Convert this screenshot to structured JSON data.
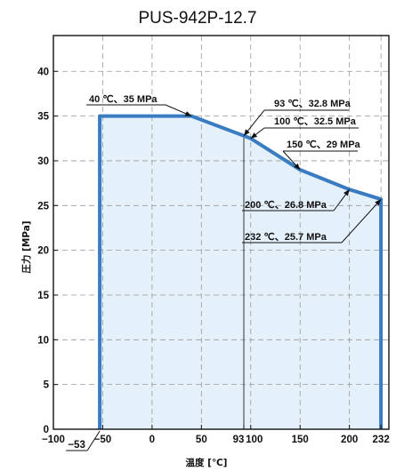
{
  "chart_data": {
    "type": "area",
    "title": "PUS-942P-12.7",
    "xlabel": "温度 [℃]",
    "ylabel": "圧力 [MPa]",
    "xlim": [
      -100,
      240
    ],
    "ylim": [
      0,
      44
    ],
    "x_ticks": [
      -100,
      -50,
      0,
      50,
      93,
      100,
      150,
      200,
      232
    ],
    "x_tick_labels": [
      "−100",
      "−50",
      "0",
      "50",
      "93",
      "100",
      "150",
      "200",
      "232"
    ],
    "extra_x_label": {
      "value": -53,
      "label": "−53"
    },
    "y_ticks": [
      0,
      5,
      10,
      15,
      20,
      25,
      30,
      35,
      40
    ],
    "y_tick_labels": [
      "0",
      "5",
      "10",
      "15",
      "20",
      "25",
      "30",
      "35",
      "40"
    ],
    "grid": true,
    "reference_line_x": 93,
    "series": [
      {
        "x": [
          -53,
          -53,
          40,
          93,
          100,
          150,
          200,
          232,
          232
        ],
        "y": [
          0,
          35,
          35,
          32.8,
          32.5,
          29,
          26.8,
          25.7,
          0
        ]
      }
    ],
    "colors": {
      "line": "#3a7cc2",
      "fill": "#e4f1fb",
      "grid": "#9a9a9a"
    },
    "annotations": [
      {
        "x": 40,
        "y": 35,
        "label": "40 ℃、35 MPa"
      },
      {
        "x": 93,
        "y": 32.8,
        "label": "93 ℃、32.8 MPa"
      },
      {
        "x": 100,
        "y": 32.5,
        "label": "100 ℃、32.5 MPa"
      },
      {
        "x": 150,
        "y": 29,
        "label": "150 ℃、29 MPa"
      },
      {
        "x": 200,
        "y": 26.8,
        "label": "200 ℃、26.8 MPa"
      },
      {
        "x": 232,
        "y": 25.7,
        "label": "232 ℃、25.7 MPa"
      }
    ]
  }
}
